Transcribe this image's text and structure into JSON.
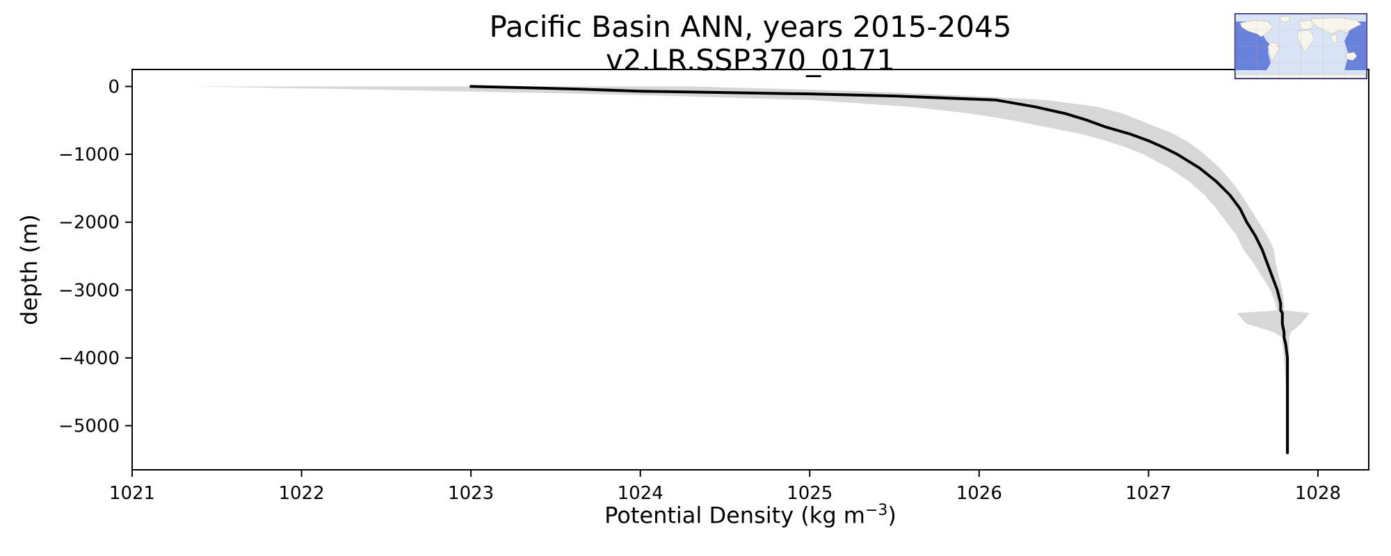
{
  "chart_data": {
    "type": "line",
    "title": "Pacific Basin ANN, years 2015-2045",
    "subtitle": "v2.LR.SSP370_0171",
    "xlabel": {
      "pre": "Potential Density (kg m",
      "sup": "−3",
      "post": ")"
    },
    "ylabel": "depth (m)",
    "xlim": [
      1021,
      1028.3
    ],
    "ylim": [
      -5650,
      250
    ],
    "xticks": [
      1021,
      1022,
      1023,
      1024,
      1025,
      1026,
      1027,
      1028
    ],
    "yticks": [
      0,
      -1000,
      -2000,
      -3000,
      -4000,
      -5000
    ],
    "grid": false,
    "line_color": "#000000",
    "line_width": 4,
    "band_color": "#bdbdbd",
    "band_opacity": 0.6,
    "series_name": "mean potential density profile with spread band",
    "depth": [
      0,
      -20,
      -40,
      -70,
      -110,
      -140,
      -200,
      -300,
      -400,
      -500,
      -600,
      -700,
      -800,
      -900,
      -1000,
      -1200,
      -1400,
      -1600,
      -1800,
      -2000,
      -2200,
      -2400,
      -2600,
      -2800,
      -3000,
      -3200,
      -3300,
      -3340,
      -3500,
      -3620,
      -3700,
      -3800,
      -4000,
      -4400,
      -4800,
      -5400
    ],
    "mean_density": [
      1023.0,
      1023.35,
      1023.65,
      1024.0,
      1025.0,
      1025.5,
      1026.1,
      1026.33,
      1026.51,
      1026.64,
      1026.75,
      1026.89,
      1027.0,
      1027.09,
      1027.17,
      1027.3,
      1027.4,
      1027.48,
      1027.54,
      1027.58,
      1027.63,
      1027.67,
      1027.7,
      1027.73,
      1027.76,
      1027.78,
      1027.78,
      1027.79,
      1027.79,
      1027.8,
      1027.8,
      1027.81,
      1027.82,
      1027.82,
      1027.82,
      1027.82
    ],
    "band_lower": [
      1021.35,
      1021.8,
      1022.3,
      1022.9,
      1023.7,
      1024.2,
      1025.0,
      1025.6,
      1025.95,
      1026.2,
      1026.4,
      1026.6,
      1026.75,
      1026.87,
      1026.97,
      1027.12,
      1027.24,
      1027.33,
      1027.4,
      1027.46,
      1027.52,
      1027.56,
      1027.62,
      1027.67,
      1027.72,
      1027.75,
      1027.76,
      1027.52,
      1027.58,
      1027.74,
      1027.79,
      1027.79,
      1027.8,
      1027.81,
      1027.81,
      1027.81
    ],
    "band_upper": [
      1024.3,
      1024.6,
      1024.9,
      1025.3,
      1025.7,
      1025.95,
      1026.4,
      1026.7,
      1026.85,
      1026.95,
      1027.05,
      1027.15,
      1027.22,
      1027.28,
      1027.33,
      1027.42,
      1027.49,
      1027.55,
      1027.6,
      1027.65,
      1027.7,
      1027.74,
      1027.75,
      1027.77,
      1027.79,
      1027.8,
      1027.8,
      1027.95,
      1027.9,
      1027.84,
      1027.83,
      1027.83,
      1027.83,
      1027.83,
      1027.83,
      1027.83
    ]
  },
  "inset_map": {
    "name": "world-map-pacific-basin-highlighted",
    "ocean_color": "#d9e4f6",
    "land_color": "#f7f5ec",
    "highlight_color": "#5b76d8",
    "border_color": "#1b1b6f"
  }
}
